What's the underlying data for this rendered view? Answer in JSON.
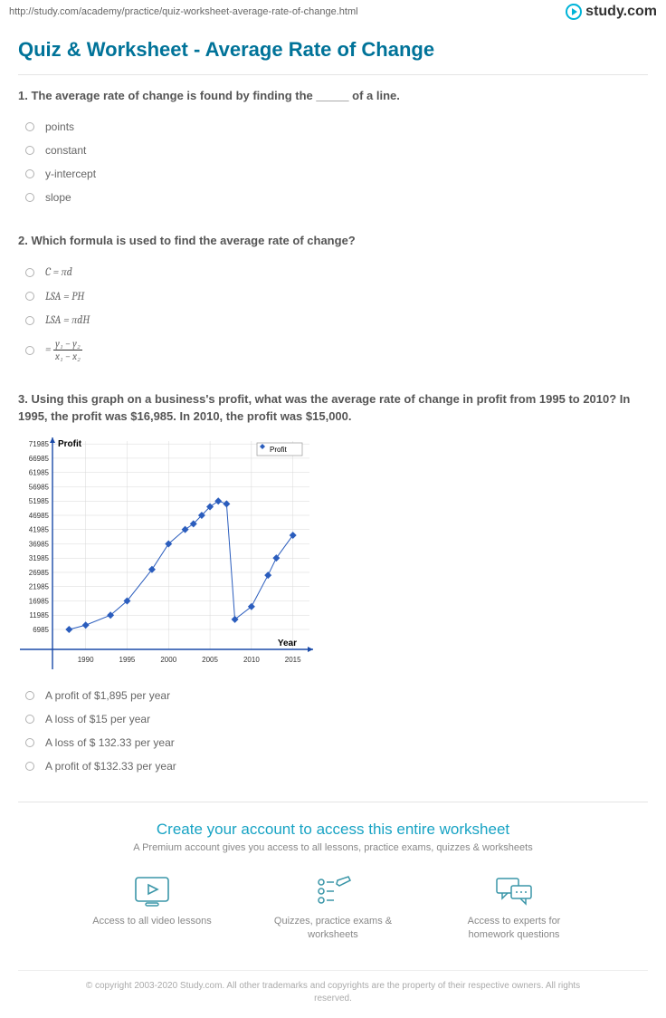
{
  "url": "http://study.com/academy/practice/quiz-worksheet-average-rate-of-change.html",
  "brand": "study.com",
  "page_title": "Quiz & Worksheet - Average Rate of Change",
  "questions": {
    "q1": {
      "text": "1. The average rate of change is found by finding the _____ of a line.",
      "options": [
        "points",
        "constant",
        "y-intercept",
        "slope"
      ]
    },
    "q2": {
      "text": "2. Which formula is used to find the average rate of change?",
      "options_html": [
        "C = πd",
        "LSA = PH",
        "LSA = πdH",
        "frac"
      ]
    },
    "q3": {
      "text": "3. Using this graph on a business's profit, what was the average rate of change in profit from 1995 to 2010? In 1995, the profit was $16,985. In 2010, the profit was $15,000.",
      "options": [
        "A profit of $1,895 per year",
        "A loss of $15 per year",
        "A loss of $ 132.33 per year",
        "A profit of $132.33 per year"
      ]
    }
  },
  "chart": {
    "type": "line",
    "title_small": "Profit",
    "legend_label": "Profit",
    "xlabel": "Year",
    "ylabel": "",
    "y_ticks": [
      6985,
      11985,
      16985,
      21985,
      26985,
      31985,
      36985,
      41985,
      46985,
      51985,
      56985,
      61985,
      66985,
      71985
    ],
    "x_ticks": [
      1990,
      1995,
      2000,
      2005,
      2010,
      2015
    ],
    "xlim": [
      1986,
      2017
    ],
    "ylim": [
      0,
      73000
    ],
    "points": [
      [
        1988,
        6985
      ],
      [
        1990,
        8500
      ],
      [
        1993,
        11985
      ],
      [
        1995,
        16985
      ],
      [
        1998,
        28000
      ],
      [
        2000,
        36985
      ],
      [
        2002,
        42000
      ],
      [
        2003,
        44000
      ],
      [
        2004,
        46985
      ],
      [
        2005,
        50000
      ],
      [
        2006,
        51985
      ],
      [
        2007,
        51000
      ],
      [
        2008,
        10500
      ],
      [
        2010,
        15000
      ],
      [
        2012,
        26000
      ],
      [
        2013,
        32000
      ],
      [
        2015,
        40000
      ]
    ],
    "line_color": "#2b5dbd",
    "marker_color": "#2b5dbd",
    "marker_shape": "diamond",
    "marker_size": 4,
    "line_width": 1,
    "grid_color": "#d8d8d8",
    "axis_color": "#1a4aa8",
    "background_color": "#ffffff",
    "tick_fontsize": 8,
    "label_fontsize": 10
  },
  "cta": {
    "title": "Create your account to access this entire worksheet",
    "subtitle": "A Premium account gives you access to all lessons, practice exams, quizzes & worksheets",
    "features": [
      "Access to all video lessons",
      "Quizzes, practice exams & worksheets",
      "Access to experts for homework questions"
    ]
  },
  "copyright": "© copyright 2003-2020 Study.com. All other trademarks and copyrights are the property of their respective owners. All rights reserved.",
  "colors": {
    "heading": "#007399",
    "cta_heading": "#18a3c4",
    "icon_stroke": "#3a96a8"
  }
}
